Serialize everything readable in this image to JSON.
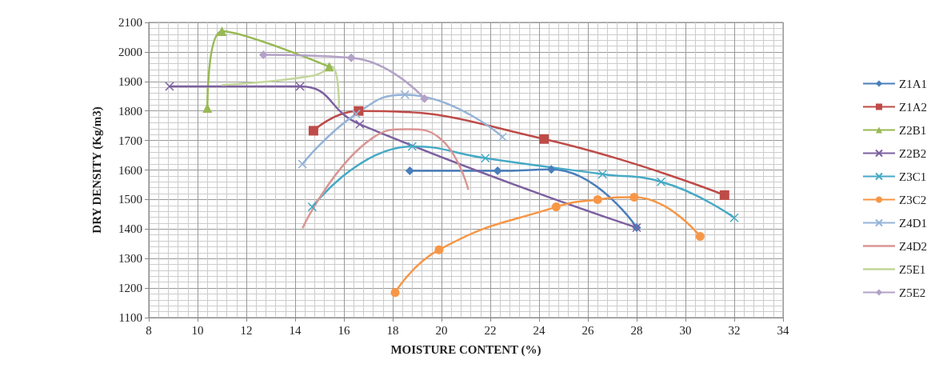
{
  "chart_data": {
    "type": "line",
    "xlabel": "MOISTURE CONTENT (%)",
    "ylabel": "DRY DENSITY (Kg/m3)",
    "xlim": [
      8,
      34
    ],
    "xticks": [
      8,
      10,
      12,
      14,
      16,
      18,
      20,
      22,
      24,
      26,
      28,
      30,
      32,
      34
    ],
    "ylim": [
      1100,
      2100
    ],
    "yticks": [
      1100,
      1200,
      1300,
      1400,
      1500,
      1600,
      1700,
      1800,
      1900,
      2000,
      2100
    ],
    "grid": true,
    "legend": "right",
    "series": [
      {
        "name": "Z1A1",
        "color": "#4a7ebb",
        "marker": "diamond",
        "x": [
          18.7,
          22.3,
          24.5,
          28.0
        ],
        "values": [
          1597,
          1597,
          1602,
          1405
        ]
      },
      {
        "name": "Z1A2",
        "color": "#be4b48",
        "marker": "square",
        "x": [
          14.75,
          16.6,
          24.2,
          31.6
        ],
        "values": [
          1733,
          1800,
          1705,
          1515
        ]
      },
      {
        "name": "Z2B1",
        "color": "#98b954",
        "marker": "triangle",
        "x": [
          10.4,
          11.0,
          15.4
        ],
        "values": [
          1810,
          2070,
          1950
        ]
      },
      {
        "name": "Z2B2",
        "color": "#7d60a0",
        "marker": "cross",
        "x": [
          8.85,
          14.2,
          16.65,
          28.0
        ],
        "values": [
          1883,
          1883,
          1755,
          1405
        ]
      },
      {
        "name": "Z3C1",
        "color": "#46aac5",
        "marker": "cross",
        "x": [
          14.7,
          18.8,
          21.8,
          26.6,
          29.0,
          32.0
        ],
        "values": [
          1475,
          1680,
          1640,
          1586,
          1560,
          1438
        ]
      },
      {
        "name": "Z3C2",
        "color": "#f79646",
        "marker": "circle",
        "x": [
          18.1,
          19.9,
          24.7,
          26.4,
          27.9,
          30.6
        ],
        "values": [
          1185,
          1330,
          1475,
          1500,
          1508,
          1375
        ]
      },
      {
        "name": "Z4D1",
        "color": "#95b3d7",
        "marker": "cross",
        "x": [
          14.3,
          16.5,
          18.5,
          22.5
        ],
        "values": [
          1620,
          1790,
          1855,
          1712
        ]
      },
      {
        "name": "Z4D2",
        "color": "#d99694",
        "marker": "none",
        "x": [
          14.3,
          17.2,
          18.6,
          19.9,
          21.1
        ],
        "values": [
          1403,
          1710,
          1738,
          1710,
          1533
        ]
      },
      {
        "name": "Z5E1",
        "color": "#c3d69b",
        "marker": "none",
        "x": [
          11.0,
          14.75,
          15.5,
          15.8
        ],
        "values": [
          1888,
          1920,
          1950,
          1810
        ]
      },
      {
        "name": "Z5E2",
        "color": "#b3a2c7",
        "marker": "diamond",
        "x": [
          12.7,
          16.3,
          19.3
        ],
        "values": [
          1990,
          1980,
          1842
        ]
      }
    ]
  }
}
